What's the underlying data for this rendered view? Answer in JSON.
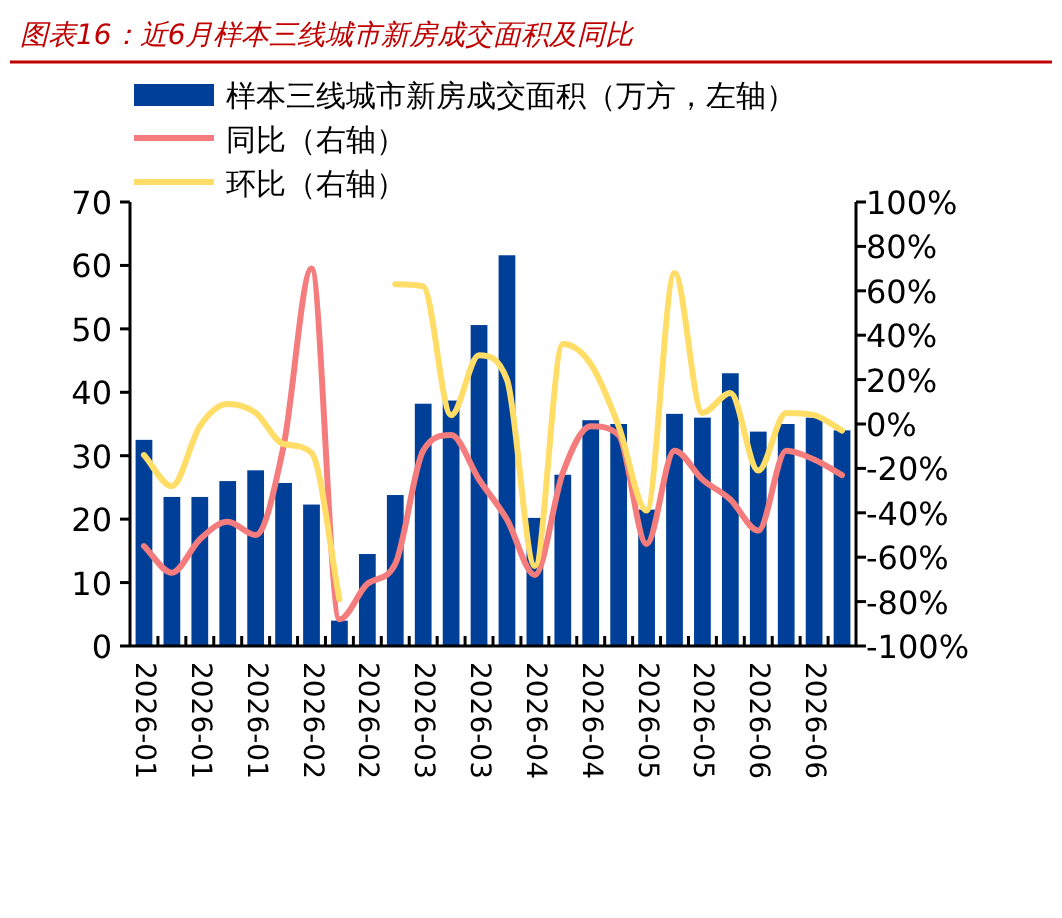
{
  "chart_data": {
    "type": "bar",
    "title": "图表16：近6月样本三线城市新房成交面积及同比",
    "categories": [
      "2026-01",
      null,
      "2026-01",
      null,
      "2026-01",
      null,
      "2026-02",
      null,
      "2026-02",
      null,
      "2026-03",
      null,
      "2026-03",
      null,
      "2026-04",
      null,
      "2026-04",
      null,
      "2026-05",
      null,
      "2026-05",
      null,
      "2026-06",
      null,
      "2026-06",
      null
    ],
    "series": [
      {
        "name": "样本三线城市新房成交面积（万方，左轴）",
        "color": "#003f98",
        "values": [
          32.5,
          23.5,
          23.5,
          26,
          27.7,
          25.7,
          22.3,
          4,
          14.5,
          23.8,
          38.2,
          38.7,
          50.6,
          61.6,
          20.2,
          27,
          35.6,
          35,
          21.5,
          36.6,
          36,
          43,
          33.8,
          35,
          36,
          34
        ]
      },
      {
        "name": "同比（右轴）",
        "type": "line",
        "axis": "y2",
        "color": "#f47c7c",
        "values": [
          -55,
          -67,
          -52,
          -44,
          -50,
          -10,
          70,
          -88,
          -72,
          -63,
          -12,
          -5,
          -25,
          -43,
          -68,
          -22,
          -1,
          -5,
          -54,
          -12,
          -25,
          -34,
          -48,
          -12,
          -16,
          -23
        ]
      },
      {
        "name": "环比（右轴）",
        "type": "line",
        "axis": "y2",
        "color": "#ffdd66",
        "values": [
          -14,
          -28,
          -1,
          9,
          5,
          -9,
          -13,
          -79,
          null,
          63,
          62,
          4,
          31,
          20,
          -64,
          36,
          27,
          -1,
          -39,
          68,
          5,
          14,
          -21,
          5,
          4,
          -3
        ]
      }
    ],
    "ylim": [
      0,
      70
    ],
    "yticks": [
      0,
      10,
      20,
      30,
      40,
      50,
      60,
      70
    ],
    "y2lim": [
      -100,
      100
    ],
    "y2ticks": [
      {
        "value": -100,
        "label": "-100%"
      },
      {
        "value": -80,
        "label": "-80%"
      },
      {
        "value": -60,
        "label": "-60%"
      },
      {
        "value": -40,
        "label": "-40%"
      },
      {
        "value": -20,
        "label": "-20%"
      },
      {
        "value": 0,
        "label": "0%"
      },
      {
        "value": 20,
        "label": "20%"
      },
      {
        "value": 40,
        "label": "40%"
      },
      {
        "value": 60,
        "label": "60%"
      },
      {
        "value": 80,
        "label": "80%"
      },
      {
        "value": 100,
        "label": "100%"
      }
    ],
    "grid": false,
    "legend": "top left"
  }
}
